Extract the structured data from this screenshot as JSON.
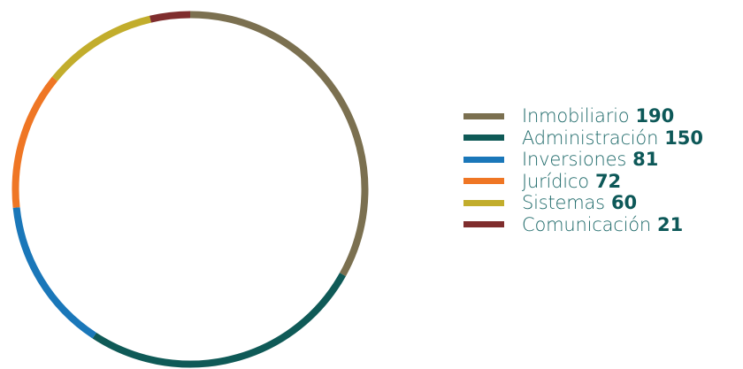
{
  "chart_data": {
    "type": "pie",
    "style": "donut",
    "legend_position": "right",
    "series": [
      {
        "name": "Inmobiliario",
        "value": 190,
        "color": "#7b7050"
      },
      {
        "name": "Administración",
        "value": 150,
        "color": "#0f5a57"
      },
      {
        "name": "Inversiones",
        "value": 81,
        "color": "#1a77b9"
      },
      {
        "name": "Jurídico",
        "value": 72,
        "color": "#ef7624"
      },
      {
        "name": "Sistemas",
        "value": 60,
        "color": "#c2ad2c"
      },
      {
        "name": "Comunicación",
        "value": 21,
        "color": "#7f2d2d"
      }
    ]
  }
}
